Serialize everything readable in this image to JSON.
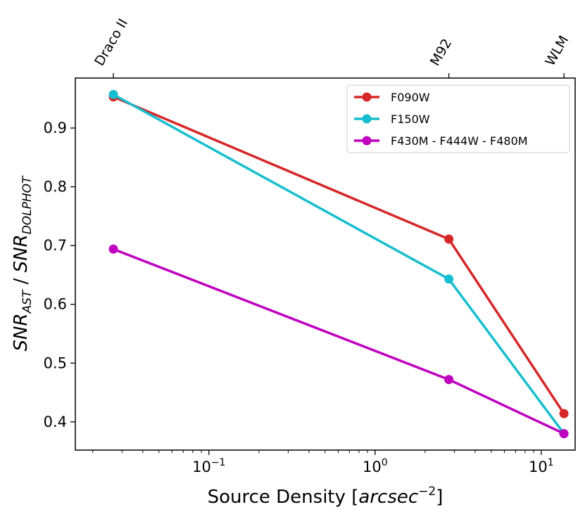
{
  "chart_data": {
    "type": "line",
    "x_scale": "log",
    "xlim": [
      0.0157,
      16.0
    ],
    "ylim": [
      0.352,
      0.985
    ],
    "x": [
      0.0266,
      2.78,
      13.7
    ],
    "series": [
      {
        "name": "F090W",
        "color": "#d62728",
        "values": [
          0.953,
          0.711,
          0.414
        ]
      },
      {
        "name": "F150W",
        "color": "#17becf",
        "values": [
          0.957,
          0.643,
          0.38
        ]
      },
      {
        "name": "F430M - F444W - F480M",
        "color": "#bf00bf",
        "values": [
          0.694,
          0.472,
          0.38
        ]
      }
    ],
    "top_labels": [
      "Draco II",
      "M92",
      "WLM"
    ],
    "yticks": [
      0.4,
      0.5,
      0.6,
      0.7,
      0.8,
      0.9
    ],
    "ytick_labels": [
      "0.4",
      "0.5",
      "0.6",
      "0.7",
      "0.8",
      "0.9"
    ],
    "xticks": [
      {
        "value": 0.1,
        "base": "10",
        "exp": "−1"
      },
      {
        "value": 1,
        "base": "10",
        "exp": "0"
      },
      {
        "value": 10,
        "base": "10",
        "exp": "1"
      }
    ],
    "xlabel": {
      "text": "Source Density [",
      "unit": "arcsec",
      "unit_exp": "−2",
      "close": "]"
    },
    "ylabel": {
      "a": "SNR",
      "a_sub": "AST",
      "sep": " / ",
      "b": "SNR",
      "b_sub": "DOLPHOT"
    },
    "legend_loc": "upper right"
  }
}
